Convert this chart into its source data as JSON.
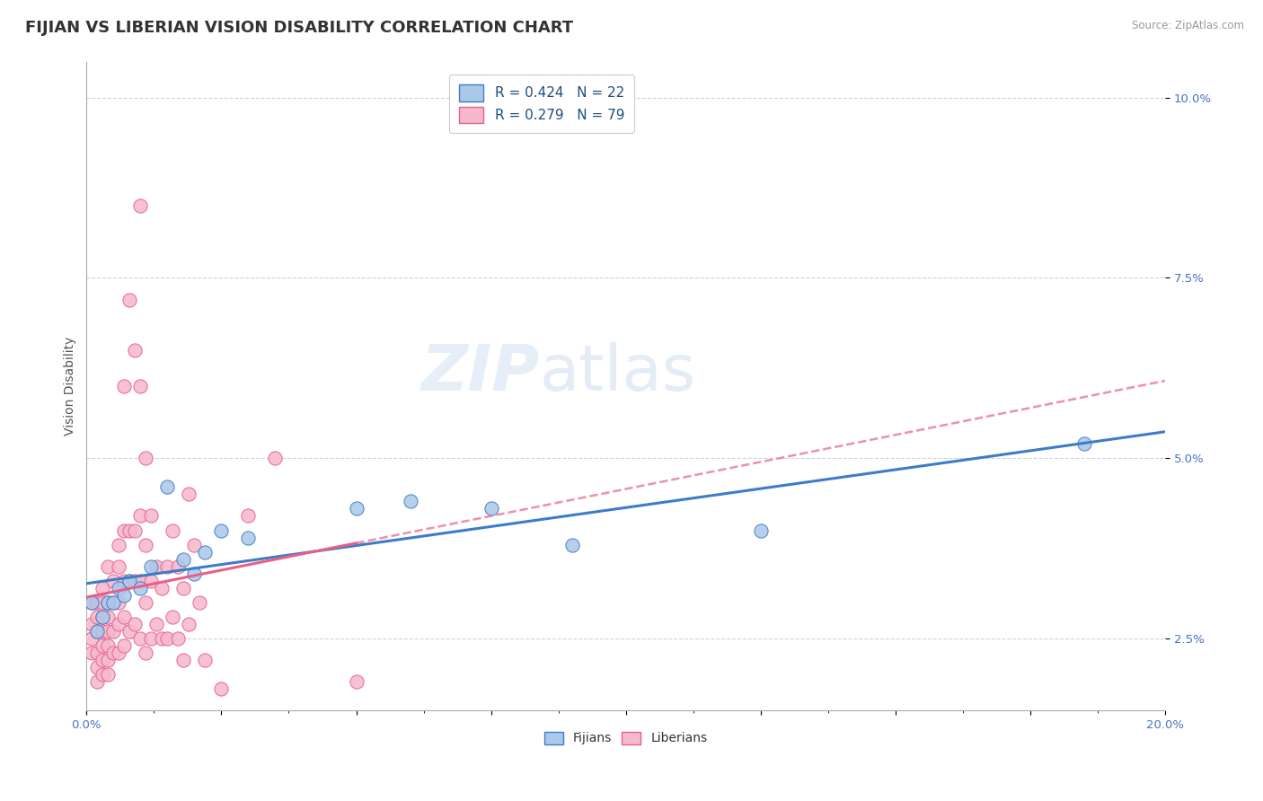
{
  "title": "FIJIAN VS LIBERIAN VISION DISABILITY CORRELATION CHART",
  "source": "Source: ZipAtlas.com",
  "ylabel": "Vision Disability",
  "legend_fijian": "R = 0.424   N = 22",
  "legend_liberian": "R = 0.279   N = 79",
  "legend_bottom_fijian": "Fijians",
  "legend_bottom_liberian": "Liberians",
  "fijian_color": "#aac8e8",
  "liberian_color": "#f5b8cc",
  "fijian_line_color": "#3d7cc9",
  "liberian_line_color": "#e8608a",
  "fijian_scatter": [
    [
      0.001,
      0.03
    ],
    [
      0.002,
      0.026
    ],
    [
      0.003,
      0.028
    ],
    [
      0.004,
      0.03
    ],
    [
      0.005,
      0.03
    ],
    [
      0.006,
      0.032
    ],
    [
      0.007,
      0.031
    ],
    [
      0.008,
      0.033
    ],
    [
      0.01,
      0.032
    ],
    [
      0.012,
      0.035
    ],
    [
      0.015,
      0.046
    ],
    [
      0.018,
      0.036
    ],
    [
      0.02,
      0.034
    ],
    [
      0.022,
      0.037
    ],
    [
      0.025,
      0.04
    ],
    [
      0.03,
      0.039
    ],
    [
      0.05,
      0.043
    ],
    [
      0.06,
      0.044
    ],
    [
      0.075,
      0.043
    ],
    [
      0.09,
      0.038
    ],
    [
      0.125,
      0.04
    ],
    [
      0.185,
      0.052
    ]
  ],
  "liberian_scatter": [
    [
      0.001,
      0.03
    ],
    [
      0.001,
      0.027
    ],
    [
      0.001,
      0.025
    ],
    [
      0.001,
      0.023
    ],
    [
      0.002,
      0.03
    ],
    [
      0.002,
      0.028
    ],
    [
      0.002,
      0.026
    ],
    [
      0.002,
      0.023
    ],
    [
      0.002,
      0.021
    ],
    [
      0.002,
      0.019
    ],
    [
      0.003,
      0.032
    ],
    [
      0.003,
      0.03
    ],
    [
      0.003,
      0.028
    ],
    [
      0.003,
      0.026
    ],
    [
      0.003,
      0.024
    ],
    [
      0.003,
      0.022
    ],
    [
      0.003,
      0.02
    ],
    [
      0.004,
      0.035
    ],
    [
      0.004,
      0.03
    ],
    [
      0.004,
      0.028
    ],
    [
      0.004,
      0.026
    ],
    [
      0.004,
      0.024
    ],
    [
      0.004,
      0.022
    ],
    [
      0.004,
      0.02
    ],
    [
      0.005,
      0.033
    ],
    [
      0.005,
      0.03
    ],
    [
      0.005,
      0.026
    ],
    [
      0.005,
      0.023
    ],
    [
      0.006,
      0.038
    ],
    [
      0.006,
      0.035
    ],
    [
      0.006,
      0.03
    ],
    [
      0.006,
      0.027
    ],
    [
      0.006,
      0.023
    ],
    [
      0.007,
      0.06
    ],
    [
      0.007,
      0.04
    ],
    [
      0.007,
      0.033
    ],
    [
      0.007,
      0.028
    ],
    [
      0.007,
      0.024
    ],
    [
      0.008,
      0.072
    ],
    [
      0.008,
      0.04
    ],
    [
      0.008,
      0.033
    ],
    [
      0.008,
      0.026
    ],
    [
      0.009,
      0.065
    ],
    [
      0.009,
      0.04
    ],
    [
      0.009,
      0.033
    ],
    [
      0.009,
      0.027
    ],
    [
      0.01,
      0.085
    ],
    [
      0.01,
      0.06
    ],
    [
      0.01,
      0.042
    ],
    [
      0.01,
      0.033
    ],
    [
      0.01,
      0.025
    ],
    [
      0.011,
      0.05
    ],
    [
      0.011,
      0.038
    ],
    [
      0.011,
      0.03
    ],
    [
      0.011,
      0.023
    ],
    [
      0.012,
      0.042
    ],
    [
      0.012,
      0.033
    ],
    [
      0.012,
      0.025
    ],
    [
      0.013,
      0.035
    ],
    [
      0.013,
      0.027
    ],
    [
      0.014,
      0.032
    ],
    [
      0.014,
      0.025
    ],
    [
      0.015,
      0.035
    ],
    [
      0.015,
      0.025
    ],
    [
      0.016,
      0.04
    ],
    [
      0.016,
      0.028
    ],
    [
      0.017,
      0.035
    ],
    [
      0.017,
      0.025
    ],
    [
      0.018,
      0.032
    ],
    [
      0.018,
      0.022
    ],
    [
      0.019,
      0.045
    ],
    [
      0.019,
      0.027
    ],
    [
      0.02,
      0.038
    ],
    [
      0.021,
      0.03
    ],
    [
      0.022,
      0.022
    ],
    [
      0.025,
      0.018
    ],
    [
      0.03,
      0.042
    ],
    [
      0.035,
      0.05
    ],
    [
      0.05,
      0.019
    ]
  ],
  "xlim": [
    0.0,
    0.2
  ],
  "ylim": [
    0.015,
    0.105
  ],
  "yticks": [
    0.025,
    0.05,
    0.075,
    0.1
  ],
  "ytick_labels": [
    "2.5%",
    "5.0%",
    "7.5%",
    "10.0%"
  ],
  "background_color": "#ffffff",
  "grid_color": "#c8d4e8",
  "title_fontsize": 13,
  "axis_label_fontsize": 10,
  "tick_fontsize": 9.5,
  "legend_fontsize": 11,
  "scatter_size": 120
}
